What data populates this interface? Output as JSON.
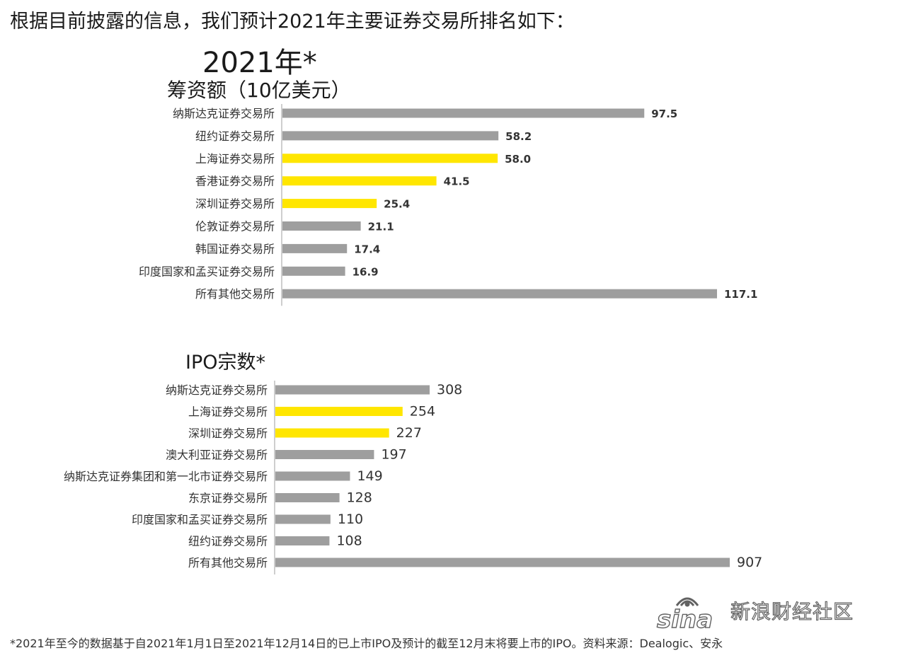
{
  "headline": "根据目前披露的信息，我们预计2021年主要证券交易所排名如下：",
  "year_label": "2021年*",
  "footnote": "*2021年至今的数据基于自2021年1月1日至2021年12月14日的已上市IPO及预计的截至12月末将要上市的IPO。资料来源：Dealogic、安永",
  "watermark": {
    "logo": "sina",
    "text": "新浪财经社区"
  },
  "colors": {
    "gray": "#9e9e9e",
    "yellow": "#ffe600",
    "axis": "#bdbdbd"
  },
  "chart_data": [
    {
      "type": "bar",
      "orientation": "horizontal",
      "title": "筹资额（10亿美元）",
      "categories": [
        "纳斯达克证券交易所",
        "纽约证券交易所",
        "上海证券交易所",
        "香港证券交易所",
        "深圳证券交易所",
        "伦敦证券交易所",
        "韩国证券交易所",
        "印度国家和孟买证券交易所",
        "所有其他交易所"
      ],
      "values": [
        97.5,
        58.2,
        58.0,
        41.5,
        25.4,
        21.1,
        17.4,
        16.9,
        117.1
      ],
      "value_labels": [
        "97.5",
        "58.2",
        "58.0",
        "41.5",
        "25.4",
        "21.1",
        "17.4",
        "16.9",
        "117.1"
      ],
      "highlight": [
        false,
        false,
        true,
        true,
        true,
        false,
        false,
        false,
        false
      ],
      "xlim": [
        0,
        117.1
      ],
      "grid": false
    },
    {
      "type": "bar",
      "orientation": "horizontal",
      "title": "IPO宗数*",
      "categories": [
        "纳斯达克证券交易所",
        "上海证券交易所",
        "深圳证券交易所",
        "澳大利亚证券交易所",
        "纳斯达克证券集团和第一北市证券交易所",
        "东京证券交易所",
        "印度国家和孟买证券交易所",
        "纽约证券交易所",
        "所有其他交易所"
      ],
      "values": [
        308,
        254,
        227,
        197,
        149,
        128,
        110,
        108,
        907
      ],
      "value_labels": [
        "308",
        "254",
        "227",
        "197",
        "149",
        "128",
        "110",
        "108",
        "907"
      ],
      "highlight": [
        false,
        true,
        true,
        false,
        false,
        false,
        false,
        false,
        false
      ],
      "xlim": [
        0,
        907
      ],
      "grid": false
    }
  ]
}
